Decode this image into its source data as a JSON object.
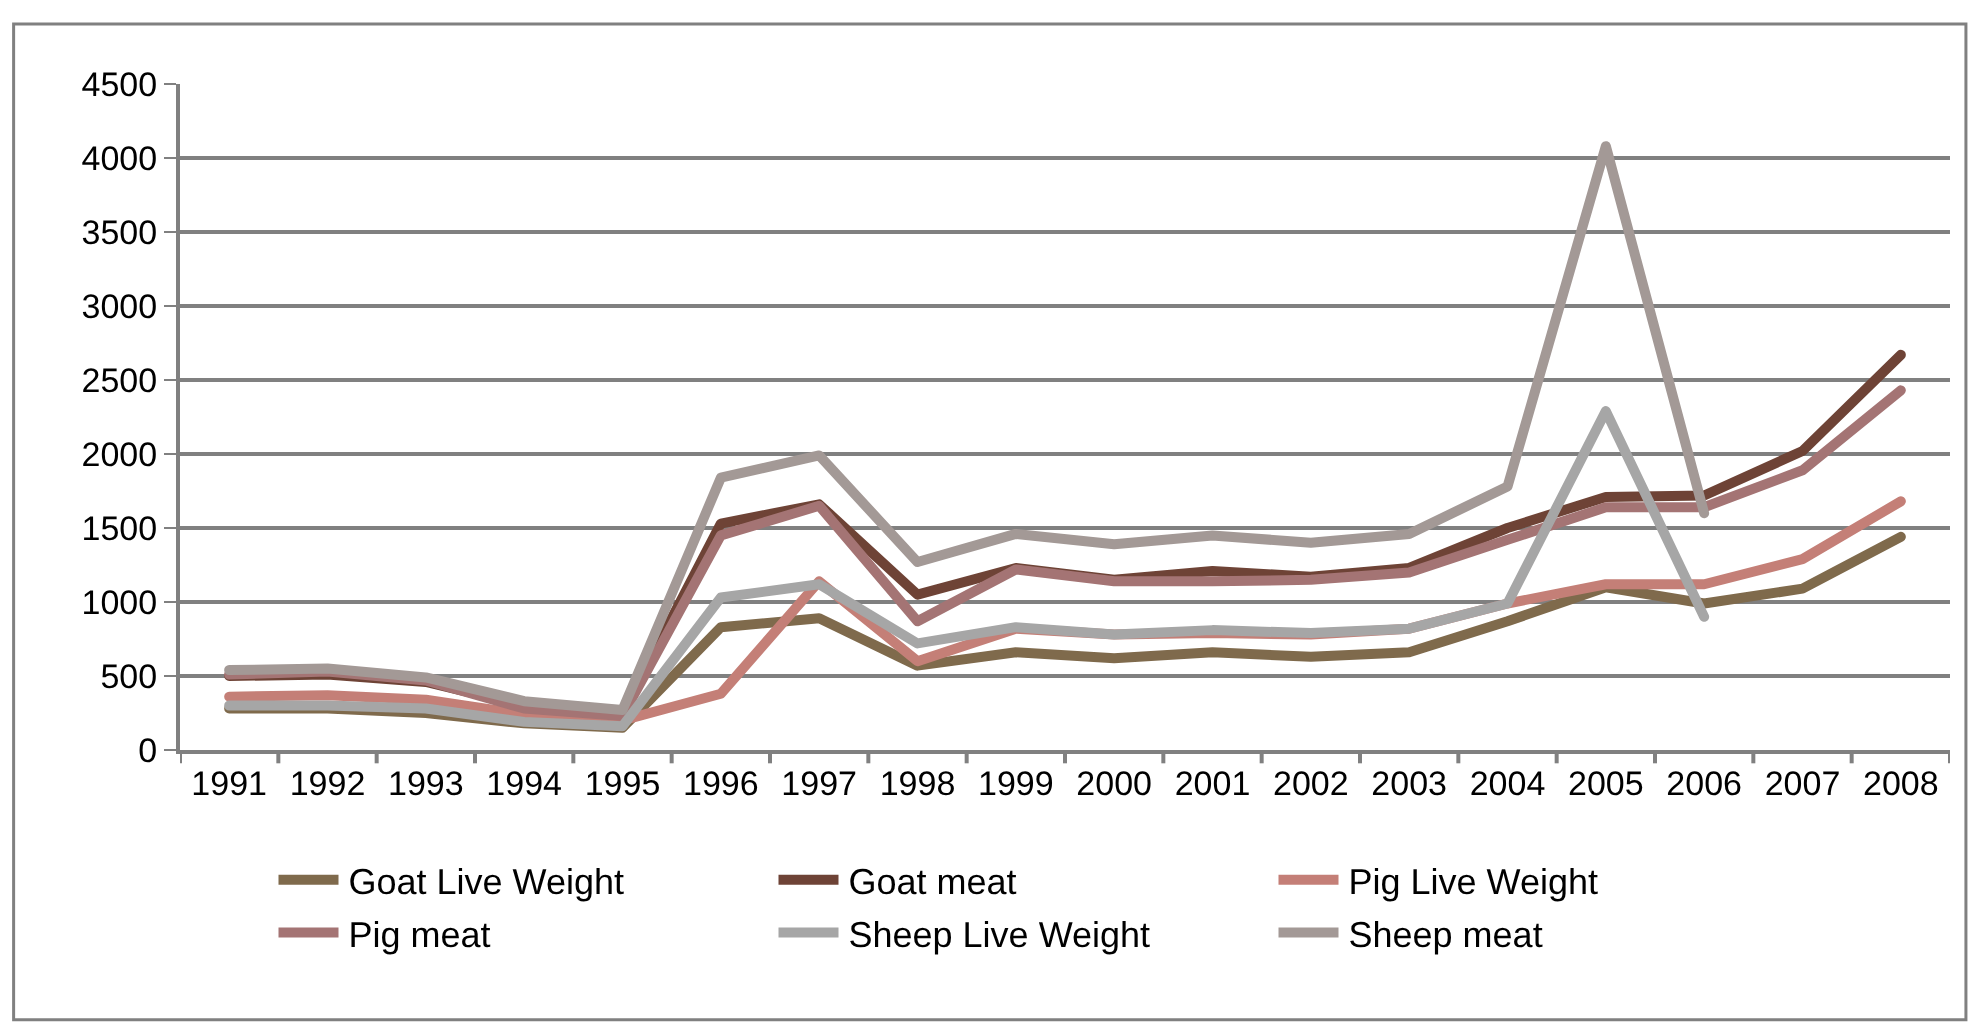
{
  "chart_data": {
    "type": "line",
    "categories": [
      "1991",
      "1992",
      "1993",
      "1994",
      "1995",
      "1996",
      "1997",
      "1998",
      "1999",
      "2000",
      "2001",
      "2002",
      "2003",
      "2004",
      "2005",
      "2006",
      "2007",
      "2008"
    ],
    "series": [
      {
        "name": "Goat Live Weight",
        "color": "#7f6a4c",
        "values": [
          280,
          280,
          250,
          180,
          150,
          830,
          890,
          570,
          660,
          620,
          660,
          630,
          660,
          870,
          1100,
          990,
          1090,
          1440
        ]
      },
      {
        "name": "Goat meat",
        "color": "#6e4336",
        "values": [
          500,
          510,
          460,
          300,
          250,
          1530,
          1660,
          1050,
          1230,
          1150,
          1210,
          1170,
          1230,
          1500,
          1710,
          1720,
          2020,
          2670
        ]
      },
      {
        "name": "Pig Live Weight",
        "color": "#c47f77",
        "values": [
          360,
          370,
          340,
          240,
          200,
          380,
          1140,
          600,
          820,
          780,
          790,
          780,
          820,
          990,
          1120,
          1120,
          1290,
          1680
        ]
      },
      {
        "name": "Pig meat",
        "color": "#a47474",
        "values": [
          510,
          530,
          470,
          280,
          230,
          1450,
          1650,
          870,
          1220,
          1140,
          1140,
          1150,
          1200,
          1420,
          1640,
          1640,
          1890,
          2430
        ]
      },
      {
        "name": "Sheep Live Weight",
        "color": "#a6a6a6",
        "values": [
          300,
          300,
          280,
          190,
          160,
          1030,
          1120,
          720,
          830,
          780,
          810,
          790,
          820,
          990,
          2290,
          900,
          null,
          null
        ]
      },
      {
        "name": "Sheep meat",
        "color": "#a39996",
        "values": [
          540,
          550,
          490,
          330,
          270,
          1840,
          1990,
          1270,
          1460,
          1390,
          1450,
          1400,
          1460,
          1780,
          4080,
          1600,
          null,
          null
        ]
      }
    ],
    "ylim": [
      0,
      4500
    ],
    "yticks": [
      0,
      500,
      1000,
      1500,
      2000,
      2500,
      3000,
      3500,
      4000,
      4500
    ],
    "grid": "y",
    "legend": "bottom",
    "marker": "none",
    "line_style": "solid"
  }
}
